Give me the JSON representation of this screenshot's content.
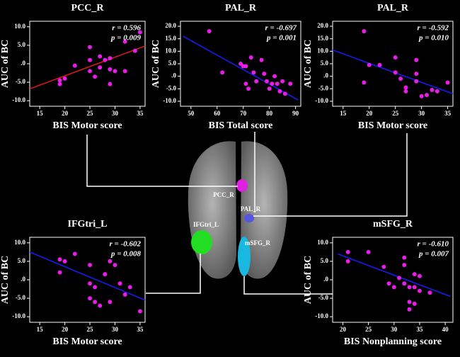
{
  "chart_data": [
    {
      "type": "scatter",
      "title": "PCC_R",
      "xlabel": "BIS Motor score",
      "ylabel": "AUC of BC",
      "annotations": [
        "r = 0.596",
        "p = 0.009"
      ],
      "color": "#e81ee8",
      "x": [
        19,
        19,
        20,
        22,
        25,
        25,
        25,
        26,
        27,
        27,
        28,
        29,
        29,
        29,
        30,
        32,
        32,
        35,
        34
      ],
      "values": [
        -5.5,
        -4.5,
        -4,
        -0.5,
        1,
        4.5,
        -2,
        -3.5,
        2,
        -1,
        1,
        -5.5,
        -1.5,
        1.5,
        -2,
        -2,
        6,
        8.5,
        3.5
      ],
      "trend": {
        "x": [
          13,
          36
        ],
        "y": [
          -6.8,
          4.8
        ],
        "color": "#e01818"
      },
      "xlim": [
        13,
        36
      ],
      "ylim": [
        -11.5,
        11.5
      ],
      "xticks": [
        15,
        20,
        25,
        30,
        35
      ],
      "yticks": [
        {
          "value": 10,
          "label": "10.0"
        },
        {
          "value": 5,
          "label": "5.0"
        },
        {
          "value": 0,
          "label": ".0"
        },
        {
          "value": -5,
          "label": "-5.0"
        },
        {
          "value": -10,
          "label": "-10.0"
        }
      ]
    },
    {
      "type": "scatter",
      "title": "PAL_R",
      "xlabel": "BIS Total score",
      "ylabel": "AUC of BC",
      "annotations": [
        "r = -0.697",
        "p = 0.001"
      ],
      "color": "#e81ee8",
      "x": [
        57,
        62,
        69,
        70,
        71,
        71,
        72,
        73,
        74,
        75,
        77,
        78,
        79,
        80,
        81,
        82,
        83,
        84,
        85,
        86,
        88
      ],
      "values": [
        18,
        1.5,
        5,
        4,
        4,
        -3,
        -5,
        7.5,
        1.5,
        -2,
        6.5,
        1,
        -2,
        -5,
        -3,
        0,
        -3,
        -6,
        -2,
        -7,
        -3
      ],
      "trend": {
        "x": [
          47,
          91
        ],
        "y": [
          16,
          -9.5
        ],
        "color": "#1a1aff"
      },
      "xlim": [
        46,
        92
      ],
      "ylim": [
        -12,
        22
      ],
      "xticks": [
        50,
        60,
        70,
        80,
        90
      ],
      "yticks": [
        {
          "value": 20,
          "label": "20.0"
        },
        {
          "value": 15,
          "label": "15.0"
        },
        {
          "value": 10,
          "label": "10.0"
        },
        {
          "value": 5,
          "label": "5.0"
        },
        {
          "value": 0,
          "label": ".0"
        },
        {
          "value": -5,
          "label": "-5.0"
        },
        {
          "value": -10,
          "label": "-10.0"
        }
      ]
    },
    {
      "type": "scatter",
      "title": "PAL_R",
      "xlabel": "BIS Motor score",
      "ylabel": "AUC of BC",
      "annotations": [
        "r = -0.592",
        "p = 0.010"
      ],
      "color": "#e81ee8",
      "x": [
        19,
        19,
        20,
        22,
        25,
        25,
        26,
        27,
        27,
        29,
        29,
        29,
        30,
        32,
        33,
        35,
        31
      ],
      "values": [
        18,
        -2.5,
        4.5,
        4.5,
        1.5,
        7.5,
        -1,
        -4.5,
        -6,
        -2,
        1,
        6.5,
        -8,
        -5.5,
        -6,
        -2.5,
        -7.5
      ],
      "trend": {
        "x": [
          13,
          36
        ],
        "y": [
          10.5,
          -7
        ],
        "color": "#1a1aff"
      },
      "xlim": [
        13,
        36
      ],
      "ylim": [
        -12,
        22
      ],
      "xticks": [
        15,
        20,
        25,
        30,
        35
      ],
      "yticks": [
        {
          "value": 20,
          "label": "20.0"
        },
        {
          "value": 15,
          "label": "15.0"
        },
        {
          "value": 10,
          "label": "10.0"
        },
        {
          "value": 5,
          "label": "5.0"
        },
        {
          "value": 0,
          "label": ".0"
        },
        {
          "value": -5,
          "label": "-5.0"
        },
        {
          "value": -10,
          "label": "-10.0"
        }
      ]
    },
    {
      "type": "scatter",
      "title": "IFGtri_L",
      "xlabel": "BIS Motor score",
      "ylabel": "AUC of BC",
      "annotations": [
        "r = -0.602",
        "p = 0.008"
      ],
      "color": "#e81ee8",
      "x": [
        19,
        19,
        20,
        22,
        25,
        25,
        25,
        26,
        26,
        27,
        28,
        29,
        29,
        30,
        31,
        32,
        33,
        35
      ],
      "values": [
        5.5,
        2,
        5,
        7,
        4,
        -5,
        -1,
        -2,
        -6,
        -7,
        1.5,
        -6,
        5,
        4,
        -1,
        -4,
        -2,
        -8.5
      ],
      "trend": {
        "x": [
          13,
          36
        ],
        "y": [
          7.5,
          -5.5
        ],
        "color": "#1a1aff"
      },
      "xlim": [
        13,
        36
      ],
      "ylim": [
        -11.5,
        11.5
      ],
      "xticks": [
        15,
        20,
        25,
        30,
        35
      ],
      "yticks": [
        {
          "value": 10,
          "label": "10.0"
        },
        {
          "value": 5,
          "label": "5.0"
        },
        {
          "value": 0,
          "label": ".0"
        },
        {
          "value": -5,
          "label": "-5.0"
        },
        {
          "value": -10,
          "label": "-10.0"
        }
      ]
    },
    {
      "type": "scatter",
      "title": "mSFG_R",
      "xlabel": "BIS Nonplanning score",
      "ylabel": "AUC of BC",
      "annotations": [
        "r = -0.610",
        "p = 0.007"
      ],
      "color": "#e81ee8",
      "x": [
        21,
        21,
        25,
        28,
        29,
        30,
        31,
        32,
        32,
        32,
        33,
        33,
        33,
        34,
        34,
        35,
        35,
        34,
        37
      ],
      "values": [
        7.5,
        5,
        7.5,
        3.5,
        -1,
        -2,
        0.5,
        6,
        4,
        -1,
        -2,
        -6,
        -8,
        1.5,
        -2,
        1,
        -3,
        -6.5,
        -3.5
      ],
      "trend": {
        "x": [
          19,
          41
        ],
        "y": [
          7,
          -4.5
        ],
        "color": "#1a1aff"
      },
      "xlim": [
        18,
        41.5
      ],
      "ylim": [
        -11.5,
        11.5
      ],
      "xticks": [
        20,
        25,
        30,
        35,
        40
      ],
      "yticks": [
        {
          "value": 10,
          "label": "10.0"
        },
        {
          "value": 5,
          "label": "5.0"
        },
        {
          "value": 0,
          "label": ".0"
        },
        {
          "value": -5,
          "label": "-5.0"
        },
        {
          "value": -10,
          "label": "-10.0"
        }
      ]
    }
  ],
  "brain": {
    "labels": [
      "PCC_R",
      "PAL_R",
      "IFGtri_L",
      "mSFG_R"
    ]
  }
}
